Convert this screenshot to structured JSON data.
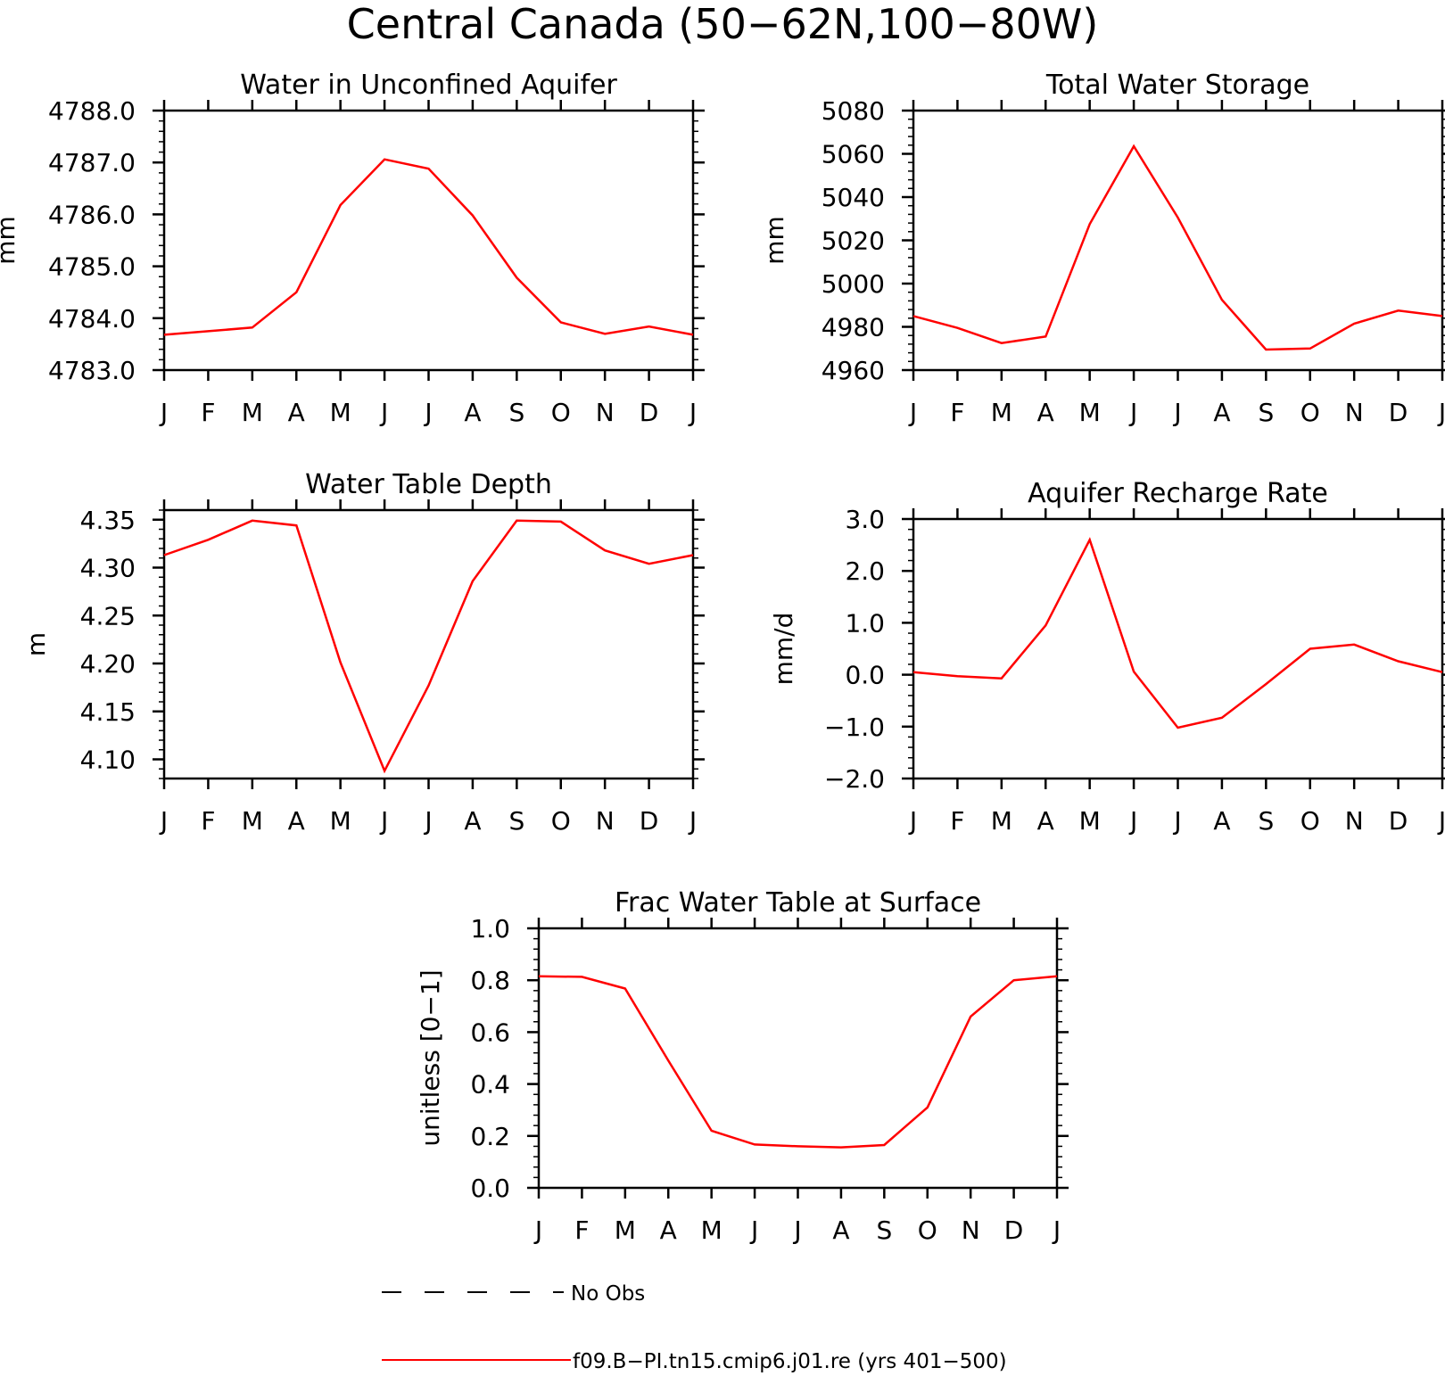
{
  "title": "Central Canada (50−62N,100−80W)",
  "colors": {
    "model_line": "#ff0000",
    "obs_line": "#000000",
    "axes": "#000000",
    "background": "#ffffff"
  },
  "chart_data": [
    {
      "type": "line",
      "title": "Water in Unconfined Aquifer",
      "ylabel": "mm",
      "xlabel": "",
      "categories": [
        "J",
        "F",
        "M",
        "A",
        "M",
        "J",
        "J",
        "A",
        "S",
        "O",
        "N",
        "D",
        "J"
      ],
      "ylim": [
        4783.0,
        4788.0
      ],
      "yticks": [
        4783.0,
        4784.0,
        4785.0,
        4786.0,
        4787.0,
        4788.0
      ],
      "ytick_labels": [
        "4783.0",
        "4784.0",
        "4785.0",
        "4786.0",
        "4787.0",
        "4788.0"
      ],
      "series": [
        {
          "values": [
            4783.68,
            4783.75,
            4783.82,
            4784.5,
            4786.18,
            4787.06,
            4786.88,
            4785.98,
            4784.78,
            4783.92,
            4783.7,
            4783.84,
            4783.68
          ]
        }
      ]
    },
    {
      "type": "line",
      "title": "Total Water Storage",
      "ylabel": "mm",
      "xlabel": "",
      "categories": [
        "J",
        "F",
        "M",
        "A",
        "M",
        "J",
        "J",
        "A",
        "S",
        "O",
        "N",
        "D",
        "J"
      ],
      "ylim": [
        4960,
        5080
      ],
      "yticks": [
        4960,
        4980,
        5000,
        5020,
        5040,
        5060,
        5080
      ],
      "ytick_labels": [
        "4960",
        "4980",
        "5000",
        "5020",
        "5040",
        "5060",
        "5080"
      ],
      "series": [
        {
          "values": [
            4985,
            4979.5,
            4972.5,
            4975.5,
            5027.5,
            5063.5,
            5030.5,
            4992.5,
            4969.5,
            4970.0,
            4981.5,
            4987.5,
            4985
          ]
        }
      ]
    },
    {
      "type": "line",
      "title": "Water Table Depth",
      "ylabel": "m",
      "xlabel": "",
      "categories": [
        "J",
        "F",
        "M",
        "A",
        "M",
        "J",
        "J",
        "A",
        "S",
        "O",
        "N",
        "D",
        "J"
      ],
      "ylim": [
        4.08,
        4.36
      ],
      "yticks": [
        4.1,
        4.15,
        4.2,
        4.25,
        4.3,
        4.35
      ],
      "ytick_labels": [
        "4.10",
        "4.15",
        "4.20",
        "4.25",
        "4.30",
        "4.35"
      ],
      "series": [
        {
          "values": [
            4.313,
            4.329,
            4.349,
            4.344,
            4.201,
            4.088,
            4.177,
            4.286,
            4.349,
            4.348,
            4.318,
            4.304,
            4.313
          ]
        }
      ]
    },
    {
      "type": "line",
      "title": "Aquifer Recharge Rate",
      "ylabel": "mm/d",
      "xlabel": "",
      "categories": [
        "J",
        "F",
        "M",
        "A",
        "M",
        "J",
        "J",
        "A",
        "S",
        "O",
        "N",
        "D",
        "J"
      ],
      "ylim": [
        -2.0,
        3.0
      ],
      "yticks": [
        -2.0,
        -1.0,
        0.0,
        1.0,
        2.0,
        3.0
      ],
      "ytick_labels": [
        "−2.0",
        "−1.0",
        "0.0",
        "1.0",
        "2.0",
        "3.0"
      ],
      "series": [
        {
          "values": [
            0.05,
            -0.03,
            -0.07,
            0.95,
            2.6,
            0.06,
            -1.02,
            -0.83,
            -0.18,
            0.5,
            0.58,
            0.26,
            0.05
          ]
        }
      ]
    },
    {
      "type": "line",
      "title": "Frac Water Table at Surface",
      "ylabel": "unitless [0−1]",
      "xlabel": "",
      "categories": [
        "J",
        "F",
        "M",
        "A",
        "M",
        "J",
        "J",
        "A",
        "S",
        "O",
        "N",
        "D",
        "J"
      ],
      "ylim": [
        0.0,
        1.0
      ],
      "yticks": [
        0.0,
        0.2,
        0.4,
        0.6,
        0.8,
        1.0
      ],
      "ytick_labels": [
        "0.0",
        "0.2",
        "0.4",
        "0.6",
        "0.8",
        "1.0"
      ],
      "series": [
        {
          "values": [
            0.815,
            0.813,
            0.768,
            0.49,
            0.22,
            0.167,
            0.16,
            0.156,
            0.165,
            0.31,
            0.66,
            0.8,
            0.815
          ]
        }
      ]
    }
  ],
  "legend": {
    "entries": [
      {
        "label": "No Obs",
        "style": "dashed",
        "color": "#000000"
      },
      {
        "label": "f09.B−PI.tn15.cmip6.j01.re (yrs 401−500)",
        "style": "solid",
        "color": "#ff0000"
      }
    ]
  }
}
